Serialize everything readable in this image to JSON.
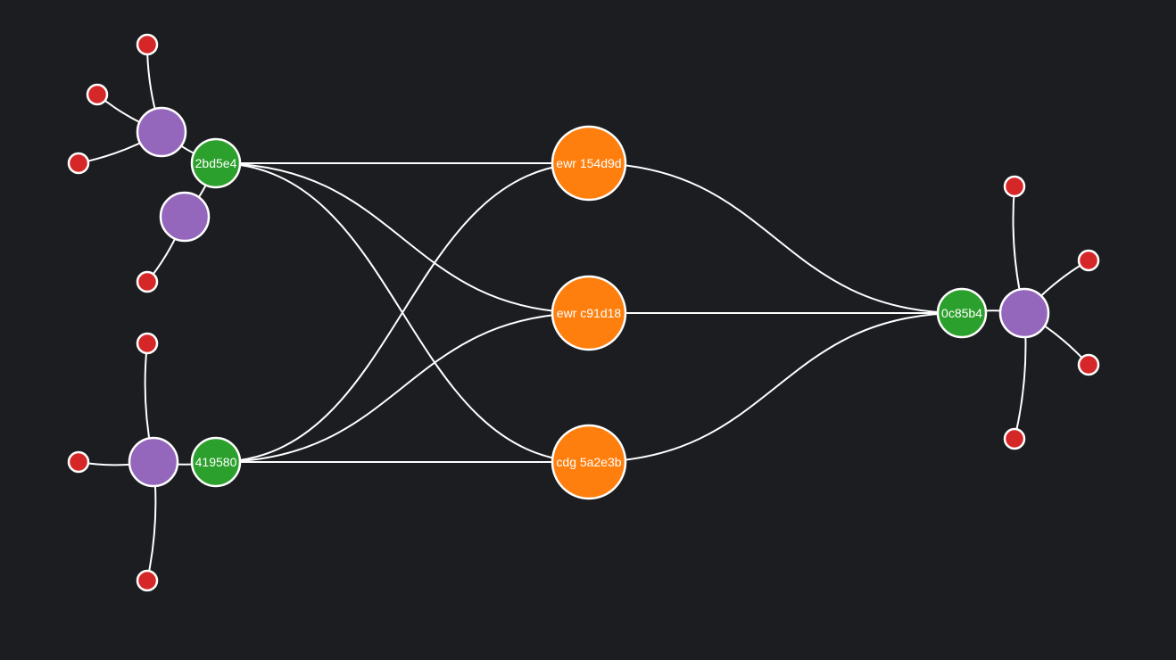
{
  "colors": {
    "background": "#1b1d21",
    "router": "#ff7f0e",
    "switch": "#2ca02c",
    "host": "#9467bd",
    "endpoint": "#d62728",
    "edge": "#ffffff"
  },
  "nodes": [
    {
      "id": "r1",
      "kind": "router",
      "label": "ewr 154d9d"
    },
    {
      "id": "r2",
      "kind": "router",
      "label": "ewr c91d18"
    },
    {
      "id": "r3",
      "kind": "router",
      "label": "cdg 5a2e3b"
    },
    {
      "id": "s1",
      "kind": "switch",
      "label": "2bd5e4"
    },
    {
      "id": "s2",
      "kind": "switch",
      "label": "419580"
    },
    {
      "id": "s3",
      "kind": "switch",
      "label": "0c85b4"
    },
    {
      "id": "h1",
      "kind": "host",
      "label": ""
    },
    {
      "id": "h2",
      "kind": "host",
      "label": ""
    },
    {
      "id": "h3",
      "kind": "host",
      "label": ""
    },
    {
      "id": "h4",
      "kind": "host",
      "label": ""
    },
    {
      "id": "e1",
      "kind": "endpoint",
      "label": ""
    },
    {
      "id": "e2",
      "kind": "endpoint",
      "label": ""
    },
    {
      "id": "e3",
      "kind": "endpoint",
      "label": ""
    },
    {
      "id": "e4",
      "kind": "endpoint",
      "label": ""
    },
    {
      "id": "e5",
      "kind": "endpoint",
      "label": ""
    },
    {
      "id": "e6",
      "kind": "endpoint",
      "label": ""
    },
    {
      "id": "e7",
      "kind": "endpoint",
      "label": ""
    },
    {
      "id": "e8",
      "kind": "endpoint",
      "label": ""
    },
    {
      "id": "e9",
      "kind": "endpoint",
      "label": ""
    },
    {
      "id": "e10",
      "kind": "endpoint",
      "label": ""
    },
    {
      "id": "e11",
      "kind": "endpoint",
      "label": ""
    }
  ],
  "edges": [
    {
      "from": "s1",
      "to": "r1"
    },
    {
      "from": "s1",
      "to": "r2"
    },
    {
      "from": "s1",
      "to": "r3"
    },
    {
      "from": "s2",
      "to": "r1"
    },
    {
      "from": "s2",
      "to": "r2"
    },
    {
      "from": "s2",
      "to": "r3"
    },
    {
      "from": "r1",
      "to": "s3"
    },
    {
      "from": "r2",
      "to": "s3"
    },
    {
      "from": "r3",
      "to": "s3"
    },
    {
      "from": "s1",
      "to": "h1"
    },
    {
      "from": "s1",
      "to": "h2"
    },
    {
      "from": "s2",
      "to": "h3"
    },
    {
      "from": "s3",
      "to": "h4"
    },
    {
      "from": "h1",
      "to": "e1"
    },
    {
      "from": "h1",
      "to": "e2"
    },
    {
      "from": "h1",
      "to": "e3"
    },
    {
      "from": "h2",
      "to": "e4"
    },
    {
      "from": "h3",
      "to": "e5"
    },
    {
      "from": "h3",
      "to": "e6"
    },
    {
      "from": "h3",
      "to": "e7"
    },
    {
      "from": "h4",
      "to": "e8"
    },
    {
      "from": "h4",
      "to": "e9"
    },
    {
      "from": "h4",
      "to": "e10"
    },
    {
      "from": "h4",
      "to": "e11"
    }
  ]
}
